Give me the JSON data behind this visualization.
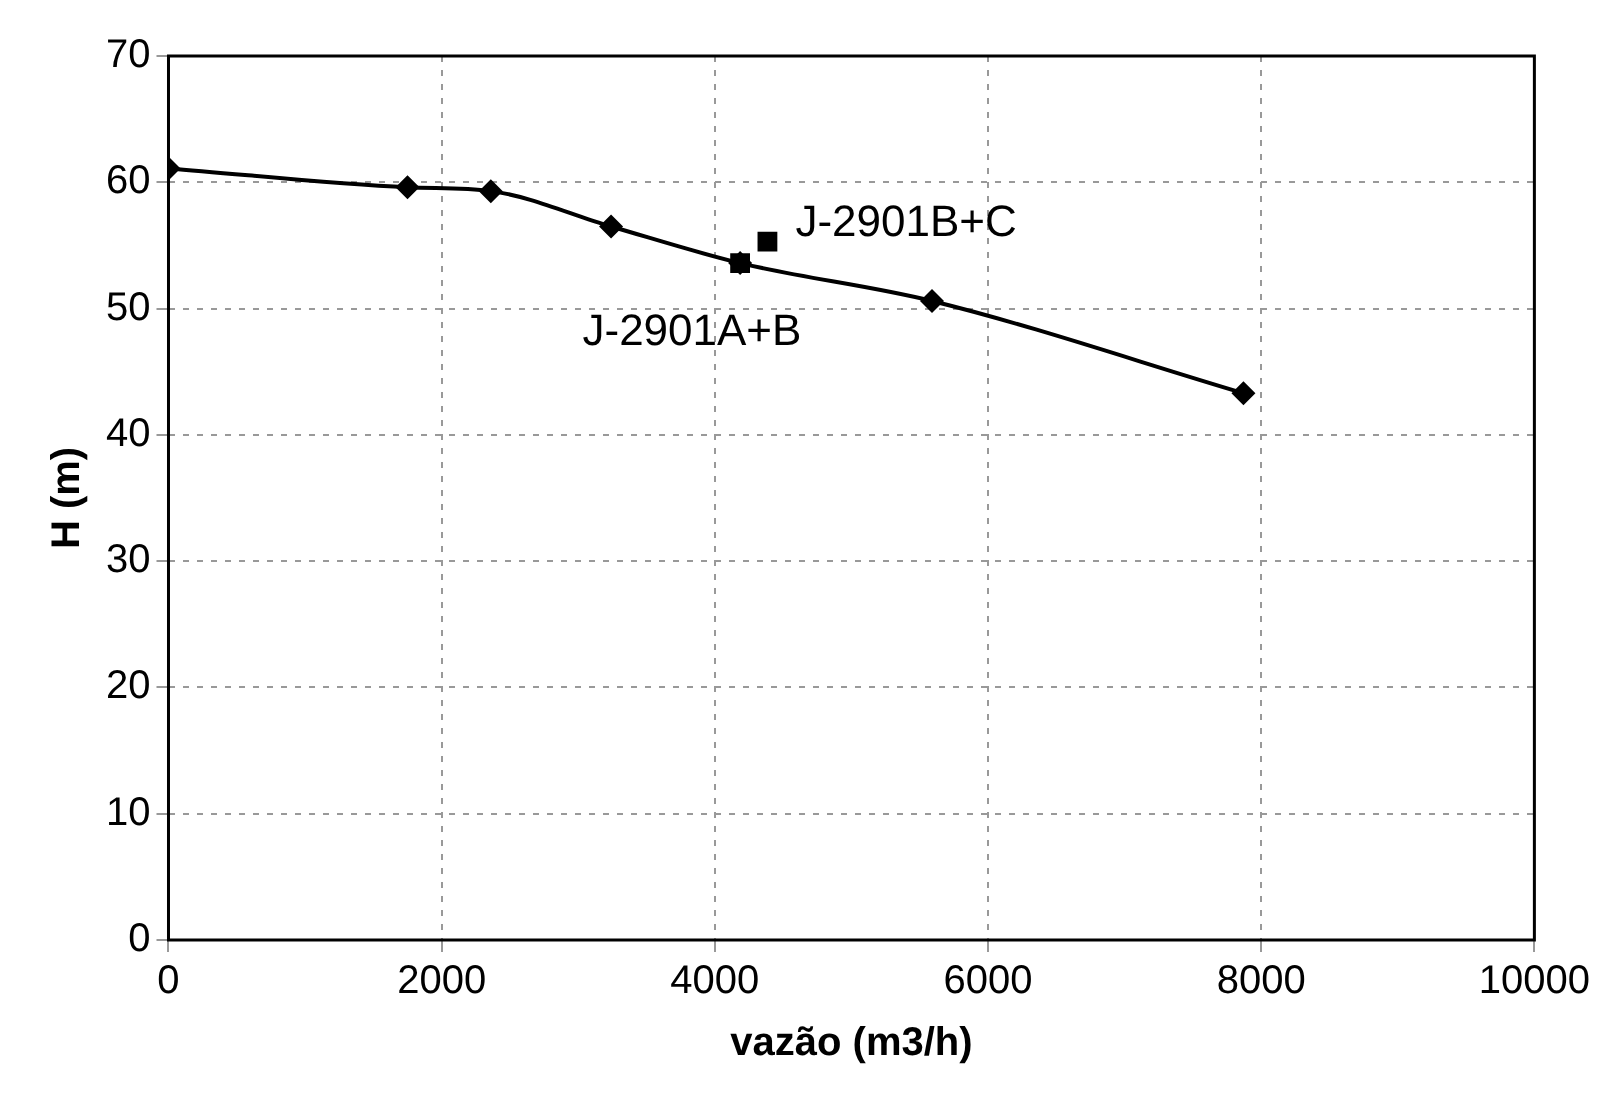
{
  "chart_data": {
    "type": "line",
    "xlabel": "vazão (m3/h)",
    "ylabel": "H (m)",
    "xlim": [
      0,
      10000
    ],
    "xticks": [
      0,
      2000,
      4000,
      6000,
      8000,
      10000
    ],
    "ylim": [
      0,
      70
    ],
    "yticks": [
      0,
      10,
      20,
      30,
      40,
      50,
      60,
      70
    ],
    "grid": true,
    "legend": false,
    "series": [
      {
        "color": "#000000",
        "marker": "diamond",
        "x": [
          0,
          1750,
          2360,
          3240,
          4185,
          5590,
          7870
        ],
        "values": [
          61.1,
          59.6,
          59.3,
          56.5,
          53.6,
          50.6,
          43.3
        ]
      },
      {
        "type": "scatter",
        "color": "#000000",
        "marker": "square",
        "x": [
          4185,
          4385
        ],
        "values": [
          53.6,
          55.3
        ]
      }
    ],
    "annotations": [
      {
        "text": "J-2901A+B",
        "x": 4185,
        "y": 53.6
      },
      {
        "text": "J-2901B+C",
        "x": 4385,
        "y": 55.3
      }
    ]
  }
}
